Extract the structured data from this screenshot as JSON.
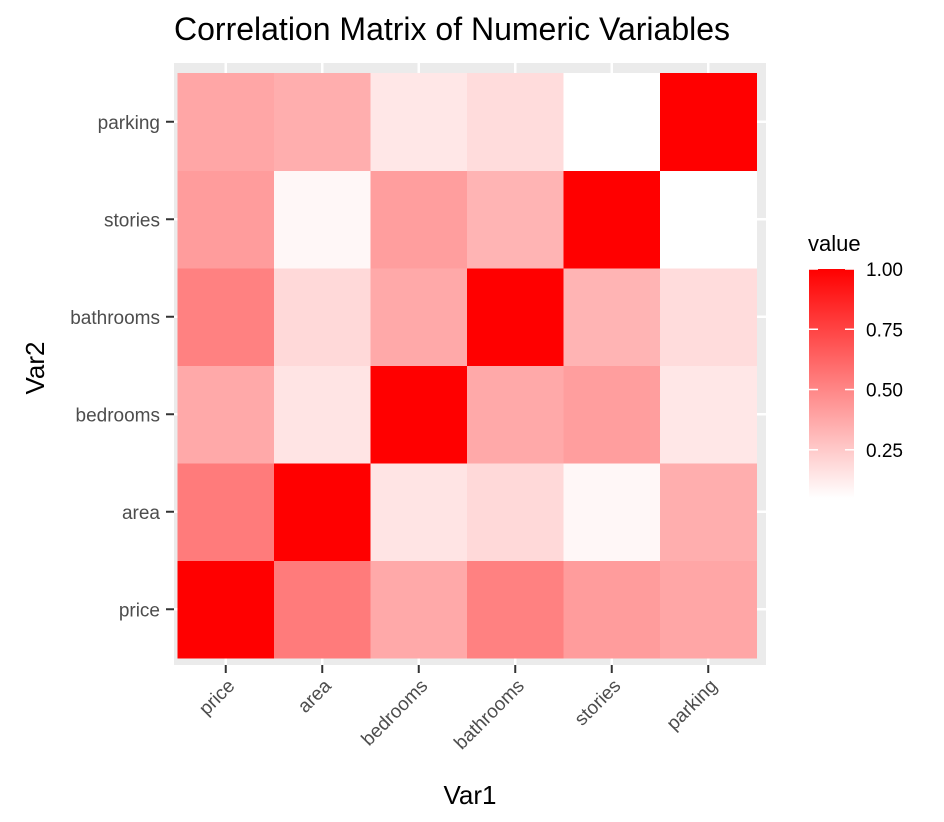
{
  "chart_data": {
    "type": "heatmap",
    "title": "Correlation Matrix of Numeric Variables",
    "xlabel": "Var1",
    "ylabel": "Var2",
    "x_categories": [
      "price",
      "area",
      "bedrooms",
      "bathrooms",
      "stories",
      "parking"
    ],
    "y_categories": [
      "price",
      "area",
      "bedrooms",
      "bathrooms",
      "stories",
      "parking"
    ],
    "values": [
      [
        1.0,
        0.54,
        0.37,
        0.52,
        0.42,
        0.38
      ],
      [
        0.54,
        1.0,
        0.15,
        0.19,
        0.08,
        0.35
      ],
      [
        0.37,
        0.15,
        1.0,
        0.37,
        0.41,
        0.14
      ],
      [
        0.52,
        0.19,
        0.37,
        1.0,
        0.33,
        0.18
      ],
      [
        0.42,
        0.08,
        0.41,
        0.33,
        1.0,
        0.05
      ],
      [
        0.38,
        0.35,
        0.14,
        0.18,
        0.05,
        1.0
      ]
    ],
    "legend": {
      "title": "value",
      "ticks": [
        0.25,
        0.5,
        0.75,
        1.0
      ],
      "tick_labels": [
        "0.25",
        "0.50",
        "0.75",
        "1.00"
      ],
      "range": [
        0.05,
        1.0
      ],
      "position": "right"
    },
    "color_low": "#ffffff",
    "color_high": "#ff0000",
    "panel_background": "#ebebeb",
    "grid": true
  }
}
